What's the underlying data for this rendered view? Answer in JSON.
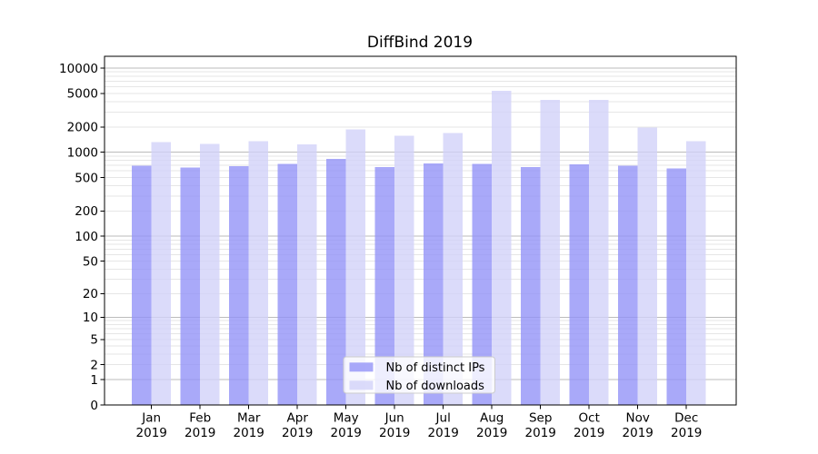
{
  "chart_data": {
    "type": "bar",
    "title": "DiffBind 2019",
    "categories": [
      "Jan",
      "Feb",
      "Mar",
      "Apr",
      "May",
      "Jun",
      "Jul",
      "Aug",
      "Sep",
      "Oct",
      "Nov",
      "Dec"
    ],
    "x_tick_second_line": "2019",
    "series": [
      {
        "name": "Nb of distinct IPs",
        "color": "#9494f8",
        "values": [
          690,
          660,
          680,
          730,
          830,
          670,
          740,
          725,
          670,
          715,
          690,
          640
        ]
      },
      {
        "name": "Nb of downloads",
        "color": "#d2d2f9",
        "values": [
          1320,
          1260,
          1350,
          1240,
          1860,
          1580,
          1690,
          5400,
          4200,
          4200,
          1960,
          1350
        ]
      }
    ],
    "y_scale": "log10(1+x)",
    "y_ticks": [
      0,
      1,
      2,
      5,
      10,
      20,
      50,
      100,
      200,
      500,
      1000,
      2000,
      5000,
      10000
    ],
    "ylim": [
      0,
      13800
    ],
    "grid": true,
    "legend": {
      "position": "lower center",
      "entries": [
        "Nb of distinct IPs",
        "Nb of downloads"
      ]
    },
    "colors": {
      "grid_major": "#bbbbbb",
      "grid_minor": "#e6e6e6",
      "axis": "#000000",
      "legend_border": "#cccccc",
      "legend_fill": "rgba(255,255,255,0.8)",
      "bar_opacity": 0.8
    }
  }
}
